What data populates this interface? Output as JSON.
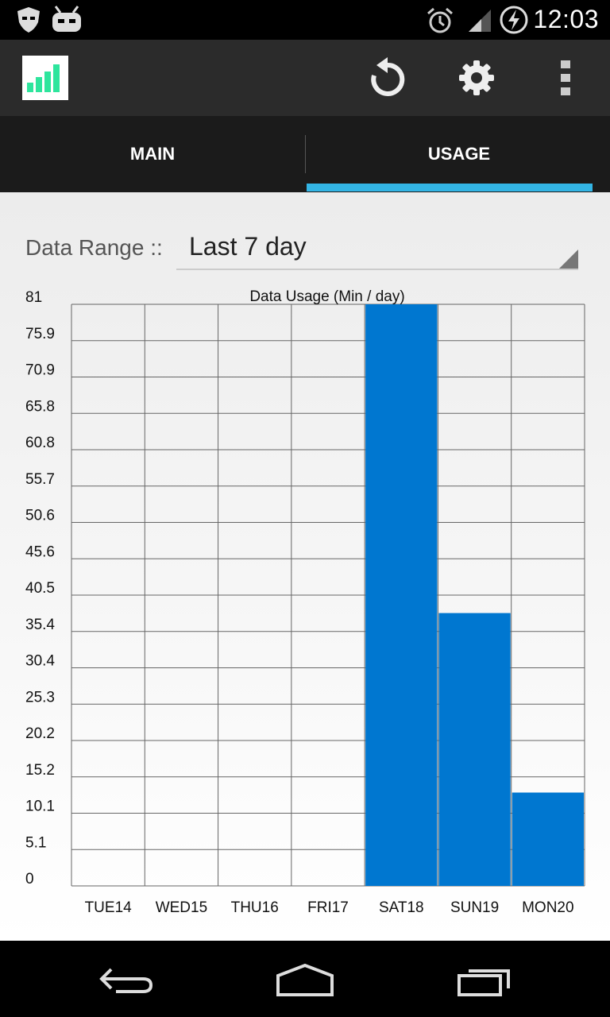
{
  "status_bar": {
    "time": "12:03",
    "icons": [
      "shield-icon",
      "robot-icon",
      "alarm-icon",
      "signal-icon",
      "battery-charging-icon"
    ]
  },
  "action_bar": {
    "app_icon": "signal-bars-app-icon",
    "actions": [
      "refresh-icon",
      "settings-gear-icon",
      "overflow-menu-icon"
    ]
  },
  "tabs": [
    {
      "label": "MAIN",
      "selected": false
    },
    {
      "label": "USAGE",
      "selected": true
    }
  ],
  "colors": {
    "tab_indicator": "#33b5e5",
    "bar": "#0077d0"
  },
  "filter": {
    "label": "Data Range ::",
    "value": "Last 7 day"
  },
  "chart_data": {
    "type": "bar",
    "title": "Data Usage (Min / day)",
    "categories": [
      "TUE14",
      "WED15",
      "THU16",
      "FRI17",
      "SAT18",
      "SUN19",
      "MON20"
    ],
    "values": [
      0,
      0,
      0,
      0,
      81,
      38,
      13
    ],
    "y_ticks": [
      "0",
      "5.1",
      "10.1",
      "15.2",
      "20.2",
      "25.3",
      "30.4",
      "35.4",
      "40.5",
      "45.6",
      "50.6",
      "55.7",
      "60.8",
      "65.8",
      "70.9",
      "75.9",
      "81"
    ],
    "ylim": [
      0,
      81
    ],
    "grid": true
  },
  "nav_bar": [
    "back-icon",
    "home-icon",
    "recent-apps-icon"
  ]
}
